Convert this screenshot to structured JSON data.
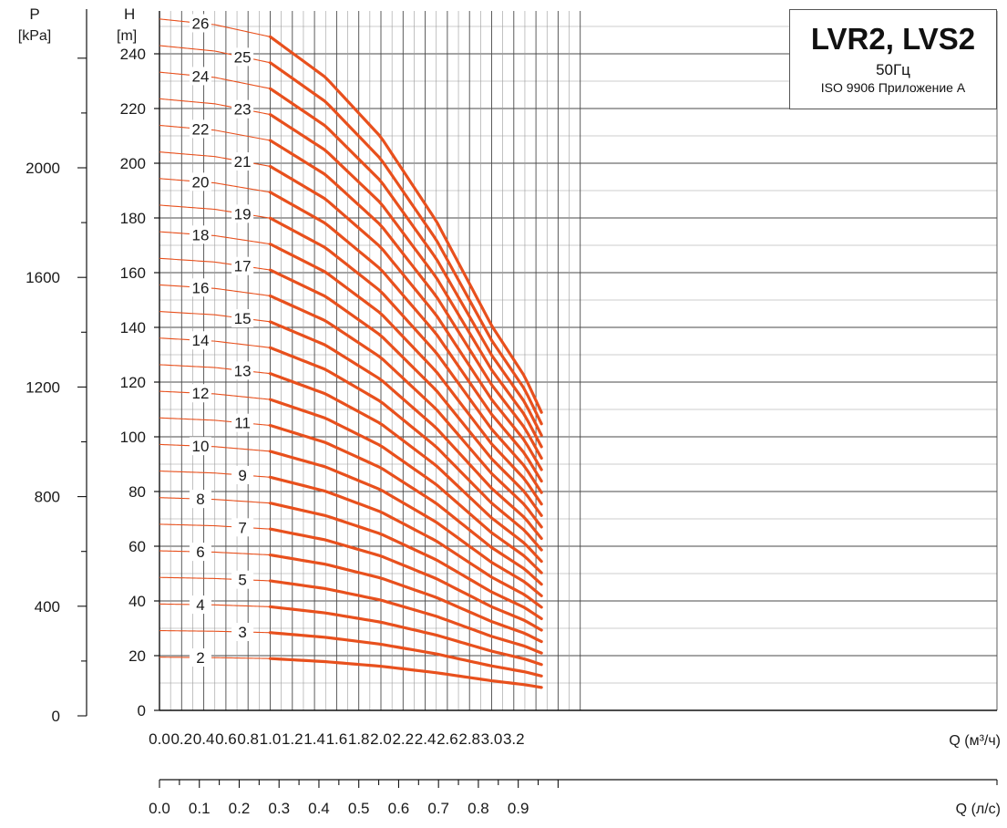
{
  "chart_data": {
    "type": "line",
    "title": "LVR2, LVS2",
    "subtitle": "50Гц",
    "standard": "ISO 9906 Приложение А",
    "p_axis": {
      "name": "P",
      "unit": "[kPa]",
      "ticks": [
        0,
        400,
        800,
        1200,
        1600,
        2000
      ],
      "ylim": [
        0,
        2550
      ]
    },
    "h_axis": {
      "name": "H",
      "unit": "[m]",
      "ticks": [
        0,
        20,
        40,
        60,
        80,
        100,
        120,
        140,
        160,
        180,
        200,
        220,
        240
      ],
      "ylim": [
        0,
        252
      ]
    },
    "q_axis": {
      "label": "Q (м³/ч)",
      "ticks": [
        "0.0",
        "0.2",
        "0.4",
        "0.6",
        "0.8",
        "1.0",
        "1.2",
        "1.4",
        "1.6",
        "1.8",
        "2.0",
        "2.2",
        "2.4",
        "2.6",
        "2.8",
        "3.0",
        "3.2"
      ],
      "xlim": [
        0,
        3.8
      ]
    },
    "qls_axis": {
      "label": "Q (л/с)",
      "ticks": [
        "0.0",
        "0.1",
        "0.2",
        "0.3",
        "0.4",
        "0.5",
        "0.6",
        "0.7",
        "0.8",
        "0.9"
      ]
    },
    "grid": true,
    "recommended_range_m3h": [
      1.0,
      3.45
    ],
    "color": "#e8501d",
    "stages": [
      2,
      3,
      4,
      5,
      6,
      7,
      8,
      9,
      10,
      11,
      12,
      13,
      14,
      15,
      16,
      17,
      18,
      19,
      20,
      21,
      22,
      23,
      24,
      25,
      26
    ],
    "per_stage_head_m": {
      "x": [
        0.0,
        0.5,
        1.0,
        1.5,
        2.0,
        2.5,
        3.0,
        3.3,
        3.45
      ],
      "y": [
        9.72,
        9.64,
        9.47,
        8.9,
        8.06,
        6.88,
        5.41,
        4.69,
        4.19
      ]
    }
  }
}
